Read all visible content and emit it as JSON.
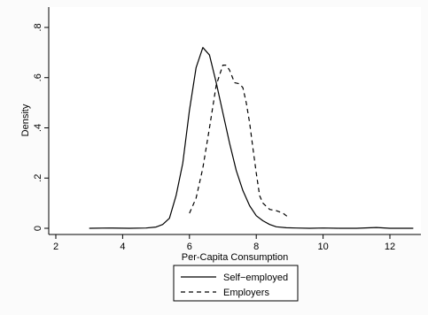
{
  "chart_data": {
    "type": "line",
    "title": "",
    "xlabel": "Per-Capita Consumption",
    "ylabel": "Density",
    "xlim": [
      2,
      12.8
    ],
    "ylim": [
      0,
      0.8
    ],
    "xticks": [
      2,
      4,
      6,
      8,
      10,
      12
    ],
    "xtick_labels": [
      "2",
      "4",
      "6",
      "8",
      "10",
      "12"
    ],
    "yticks": [
      0,
      0.2,
      0.4,
      0.6,
      0.8
    ],
    "ytick_labels": [
      "0",
      ".2",
      ".4",
      ".6",
      ".8"
    ],
    "grid": false,
    "legend_position": "bottom",
    "series": [
      {
        "name": "Self−employed",
        "style": "solid",
        "color": "#000000",
        "x": [
          3.0,
          3.6,
          4.2,
          4.7,
          5.0,
          5.2,
          5.4,
          5.6,
          5.8,
          6.0,
          6.2,
          6.4,
          6.6,
          6.8,
          7.0,
          7.2,
          7.4,
          7.6,
          7.8,
          8.0,
          8.2,
          8.4,
          8.6,
          8.9,
          9.2,
          9.6,
          10.0,
          10.5,
          11.0,
          11.6,
          12.0,
          12.4,
          12.7
        ],
        "y": [
          0.0,
          0.001,
          0.0,
          0.001,
          0.005,
          0.015,
          0.04,
          0.13,
          0.26,
          0.47,
          0.64,
          0.72,
          0.69,
          0.58,
          0.46,
          0.34,
          0.23,
          0.15,
          0.09,
          0.05,
          0.03,
          0.015,
          0.006,
          0.002,
          0.001,
          0.0,
          0.001,
          0.0,
          0.0,
          0.003,
          0.0,
          0.0,
          0.0
        ]
      },
      {
        "name": "Employers",
        "style": "dashed",
        "color": "#000000",
        "x": [
          6.0,
          6.2,
          6.4,
          6.6,
          6.8,
          7.0,
          7.1,
          7.2,
          7.35,
          7.5,
          7.6,
          7.7,
          7.8,
          7.9,
          8.0,
          8.1,
          8.2,
          8.4,
          8.6,
          8.8,
          9.0
        ],
        "y": [
          0.06,
          0.12,
          0.24,
          0.4,
          0.57,
          0.65,
          0.65,
          0.63,
          0.58,
          0.575,
          0.56,
          0.5,
          0.42,
          0.32,
          0.22,
          0.13,
          0.1,
          0.075,
          0.07,
          0.06,
          0.04
        ]
      }
    ]
  }
}
